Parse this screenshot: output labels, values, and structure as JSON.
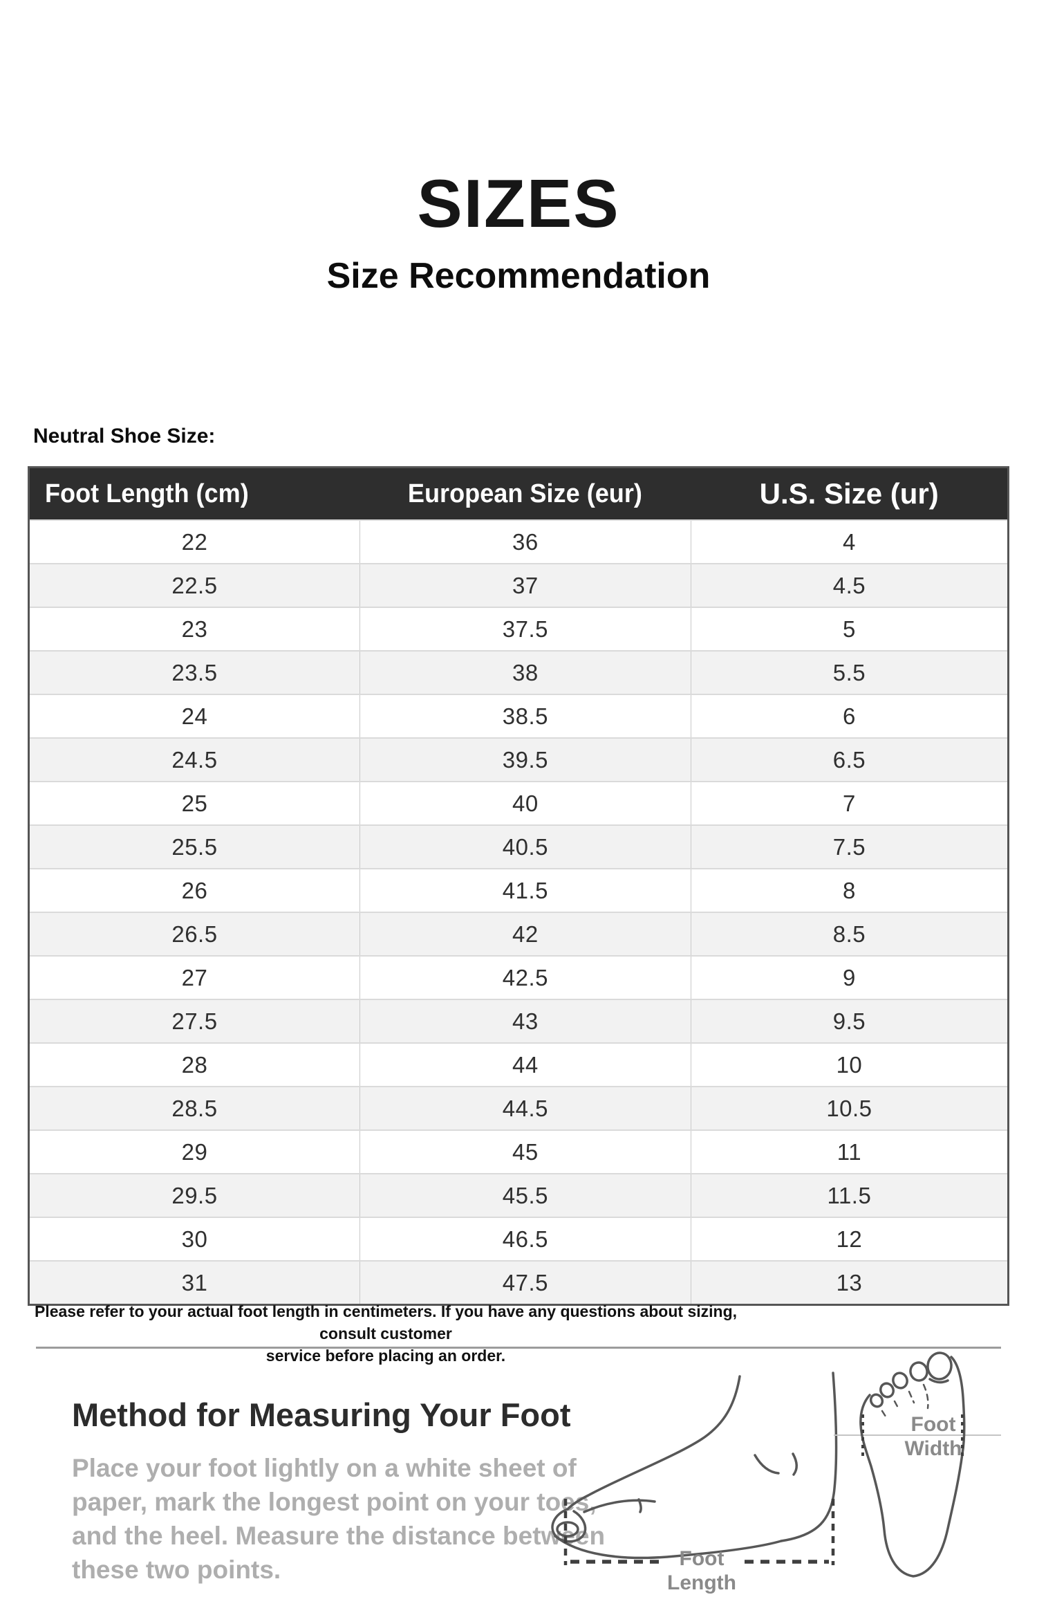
{
  "header": {
    "title": "SIZES",
    "subtitle": "Size Recommendation",
    "section_label": "Neutral Shoe Size:"
  },
  "size_table": {
    "columns": [
      "Foot Length (cm)",
      "European Size (eur)",
      "U.S. Size (ur)"
    ],
    "rows": [
      [
        "22",
        "36",
        "4"
      ],
      [
        "22.5",
        "37",
        "4.5"
      ],
      [
        "23",
        "37.5",
        "5"
      ],
      [
        "23.5",
        "38",
        "5.5"
      ],
      [
        "24",
        "38.5",
        "6"
      ],
      [
        "24.5",
        "39.5",
        "6.5"
      ],
      [
        "25",
        "40",
        "7"
      ],
      [
        "25.5",
        "40.5",
        "7.5"
      ],
      [
        "26",
        "41.5",
        "8"
      ],
      [
        "26.5",
        "42",
        "8.5"
      ],
      [
        "27",
        "42.5",
        "9"
      ],
      [
        "27.5",
        "43",
        "9.5"
      ],
      [
        "28",
        "44",
        "10"
      ],
      [
        "28.5",
        "44.5",
        "10.5"
      ],
      [
        "29",
        "45",
        "11"
      ],
      [
        "29.5",
        "45.5",
        "11.5"
      ],
      [
        "30",
        "46.5",
        "12"
      ],
      [
        "31",
        "47.5",
        "13"
      ]
    ]
  },
  "note_lines": [
    "Please refer to your actual foot length in centimeters. If you have any questions about sizing, consult customer",
    "service before placing an order."
  ],
  "measuring": {
    "heading": "Method for Measuring Your Foot",
    "instructions_lines": [
      "Place your foot lightly on a white sheet of",
      "paper, mark the longest point on your toes,",
      "and the heel. Measure the distance between",
      "these two points."
    ],
    "foot_length_label": [
      "Foot",
      "Length"
    ],
    "foot_width_label": [
      "Foot",
      "Width"
    ]
  },
  "icons": {
    "side_foot_sketch": "side-view-foot-outline",
    "top_foot_sketch": "sole-view-foot-outline"
  },
  "colors": {
    "header_bg": "#2e2e2e",
    "header_text": "#ffffff",
    "row_alt_bg": "#f2f2f2",
    "table_border": "#555555",
    "note_text": "#111111",
    "muted_text": "#aeaeae",
    "sketch_stroke": "#575757"
  }
}
